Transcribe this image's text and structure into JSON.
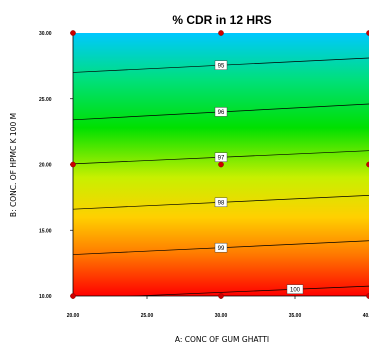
{
  "chart_data": {
    "type": "contour",
    "title": "% CDR in 12 HRS",
    "xlabel": "A: CONC OF GUM GHATTI",
    "ylabel": "B: CONC. OF HPMC K 100 M",
    "xlim": [
      20,
      40
    ],
    "ylim": [
      10,
      30
    ],
    "x_ticks": [
      "20.00",
      "25.00",
      "30.00",
      "35.00",
      "40.00"
    ],
    "y_ticks": [
      "10.00",
      "15.00",
      "20.00",
      "25.00",
      "30.00"
    ],
    "colormap": [
      "#00c8ff",
      "#00e07a",
      "#00e000",
      "#c8f000",
      "#ffd000",
      "#ff7a00",
      "#ff0000"
    ],
    "contours": [
      {
        "level": "95",
        "y_at_x20": 27.0,
        "y_at_x40": 28.1
      },
      {
        "level": "96",
        "y_at_x20": 23.4,
        "y_at_x40": 24.6
      },
      {
        "level": "97",
        "y_at_x20": 20.05,
        "y_at_x40": 21.05
      },
      {
        "level": "98",
        "y_at_x20": 16.6,
        "y_at_x40": 17.65
      },
      {
        "level": "99",
        "y_at_x20": 13.15,
        "y_at_x40": 14.2
      },
      {
        "level": "100",
        "y_at_x20": 9.8,
        "y_at_x40": 10.75
      }
    ],
    "design_points": [
      {
        "x": 20,
        "y": 30
      },
      {
        "x": 30,
        "y": 30
      },
      {
        "x": 40,
        "y": 30
      },
      {
        "x": 20,
        "y": 20
      },
      {
        "x": 30,
        "y": 20
      },
      {
        "x": 40,
        "y": 20
      },
      {
        "x": 20,
        "y": 10
      },
      {
        "x": 30,
        "y": 10
      },
      {
        "x": 40,
        "y": 10
      }
    ]
  }
}
